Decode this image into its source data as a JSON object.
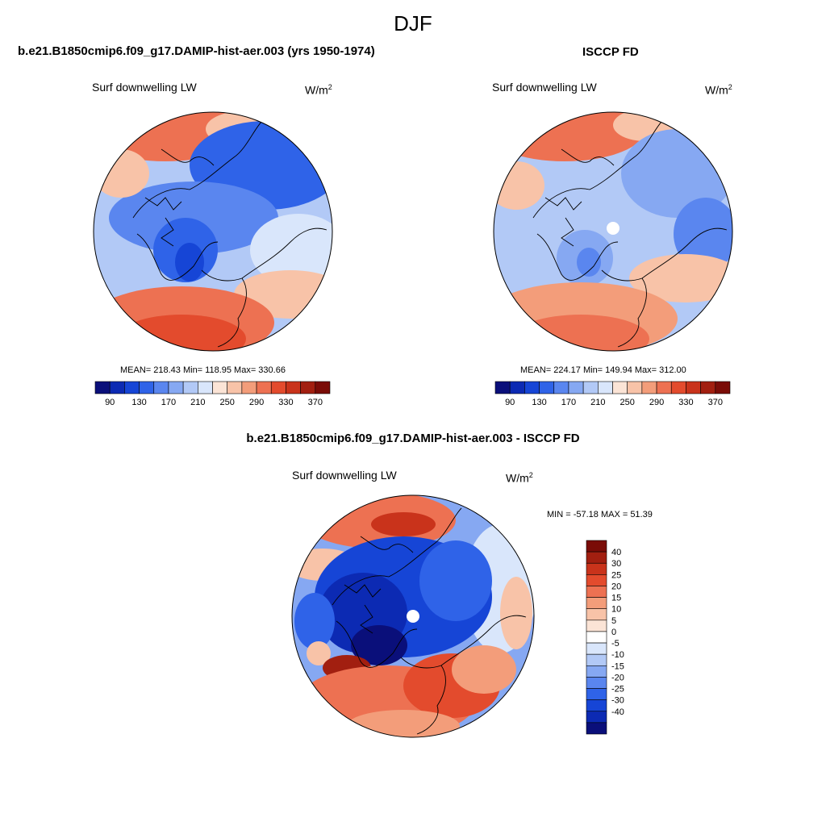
{
  "page": {
    "season": "DJF"
  },
  "panels": {
    "left": {
      "title": "b.e21.B1850cmip6.f09_g17.DAMIP-hist-aer.003 (yrs 1950-1974)",
      "variable": "Surf downwelling LW",
      "unit_base": "W/m",
      "unit_exp": "2",
      "stats": "MEAN= 218.43  Min= 118.95  Max= 330.66"
    },
    "right": {
      "title": "ISCCP FD",
      "variable": "Surf downwelling LW",
      "unit_base": "W/m",
      "unit_exp": "2",
      "stats": "MEAN= 224.17  Min= 149.94  Max= 312.00"
    },
    "diff": {
      "title": "b.e21.B1850cmip6.f09_g17.DAMIP-hist-aer.003 - ISCCP FD",
      "variable": "Surf downwelling LW",
      "unit_base": "W/m",
      "unit_exp": "2",
      "minmax": "MIN = -57.18 MAX =  51.39"
    }
  },
  "colorbars": {
    "abs": {
      "colors": [
        "#0a0f7a",
        "#0c2ab3",
        "#1645d6",
        "#2f63e8",
        "#5a86ef",
        "#86a8f2",
        "#b2c9f6",
        "#d9e6fb",
        "#fbe4d6",
        "#f8c3a8",
        "#f39d7a",
        "#ed7152",
        "#e34b2d",
        "#c9331b",
        "#a21f10",
        "#7a0c07"
      ],
      "labels": [
        "90",
        "130",
        "170",
        "210",
        "250",
        "290",
        "330",
        "370"
      ]
    },
    "diff": {
      "colors": [
        "#0a0f7a",
        "#0c2ab3",
        "#1645d6",
        "#2f63e8",
        "#5a86ef",
        "#86a8f2",
        "#b2c9f6",
        "#d9e6fb",
        "#ffffff",
        "#fbe4d6",
        "#f8c3a8",
        "#f39d7a",
        "#ed7152",
        "#e34b2d",
        "#c9331b",
        "#a21f10",
        "#7a0c07"
      ],
      "labels": [
        "-40",
        "-30",
        "-25",
        "-20",
        "-15",
        "-10",
        "-5",
        "0",
        "5",
        "10",
        "15",
        "20",
        "25",
        "30",
        "40"
      ]
    }
  },
  "colors": {
    "cold_deep": "#1a3fd0",
    "cold_mid": "#5a86ef",
    "cold_light": "#b2c9f6",
    "warm_light": "#f8c3a8",
    "warm_mid": "#ed7152",
    "warm_deep": "#c9331b",
    "missing": "#ffffff"
  }
}
